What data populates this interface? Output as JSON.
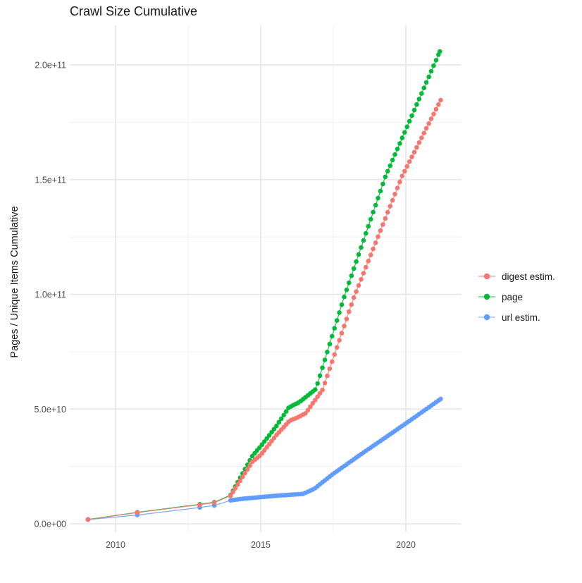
{
  "title": "Crawl Size Cumulative",
  "y_axis_title": "Pages / Unique Items Cumulative",
  "legend": {
    "items": [
      {
        "label": "digest estim.",
        "color": "#F8766D"
      },
      {
        "label": "page",
        "color": "#00BA38"
      },
      {
        "label": "url estim.",
        "color": "#619CFF"
      }
    ]
  },
  "chart_data": {
    "type": "scatter",
    "title": "Crawl Size Cumulative",
    "xlabel": "",
    "ylabel": "Pages / Unique Items Cumulative",
    "x_ticks": [
      {
        "value": 2010,
        "label": "2010"
      },
      {
        "value": 2015,
        "label": "2015"
      },
      {
        "value": 2020,
        "label": "2020"
      }
    ],
    "x_minor_ticks": [
      2012.5,
      2017.5
    ],
    "y_ticks": [
      {
        "value_billions": 0,
        "label": "0.0e+00"
      },
      {
        "value_billions": 50,
        "label": "5.0e+10"
      },
      {
        "value_billions": 100,
        "label": "1.0e+11"
      },
      {
        "value_billions": 150,
        "label": "1.5e+11"
      },
      {
        "value_billions": 200,
        "label": "2.0e+11"
      }
    ],
    "y_minor_ticks_billions": [
      25,
      75,
      125,
      175
    ],
    "xlim": [
      2008.5,
      2021.9
    ],
    "ylim_billions": [
      -4,
      217
    ],
    "grid": true,
    "legend_position": "right",
    "values_unit": "items (1 unit = 1e9)",
    "point_interval_years": 0.0833,
    "draw_order": [
      2,
      1,
      0
    ],
    "series": [
      {
        "name": "digest estim.",
        "color": "#F8766D",
        "early_points_year_billions": [
          [
            2009.05,
            1.85
          ],
          [
            2010.75,
            4.9
          ],
          [
            2012.9,
            8.3
          ],
          [
            2013.4,
            9.2
          ]
        ],
        "trend_anchors_year_billions": [
          [
            2013.96,
            12.2
          ],
          [
            2014.71,
            27.0
          ],
          [
            2015.0,
            30.0
          ],
          [
            2015.53,
            38.5
          ],
          [
            2016.0,
            45.0
          ],
          [
            2016.25,
            46.2
          ],
          [
            2016.55,
            48.2
          ],
          [
            2017.13,
            58.4
          ],
          [
            2018.2,
            98.3
          ],
          [
            2019.87,
            151.5
          ],
          [
            2021.2,
            184.6
          ]
        ]
      },
      {
        "name": "page",
        "color": "#00BA38",
        "early_points_year_billions": [
          [
            2009.05,
            1.9
          ],
          [
            2010.75,
            5.0
          ],
          [
            2012.9,
            8.5
          ],
          [
            2013.4,
            9.4
          ]
        ],
        "trend_anchors_year_billions": [
          [
            2013.96,
            12.5
          ],
          [
            2014.71,
            29.5
          ],
          [
            2015.02,
            34.1
          ],
          [
            2015.53,
            42.4
          ],
          [
            2015.97,
            50.7
          ],
          [
            2016.33,
            53.0
          ],
          [
            2016.9,
            58.7
          ],
          [
            2017.86,
            98.3
          ],
          [
            2019.3,
            151.5
          ],
          [
            2021.17,
            205.8
          ]
        ]
      },
      {
        "name": "url estim.",
        "color": "#619CFF",
        "early_points_year_billions": [
          [
            2009.05,
            1.8
          ],
          [
            2010.75,
            3.8
          ],
          [
            2012.9,
            7.1
          ],
          [
            2013.4,
            8.0
          ]
        ],
        "trend_anchors_year_billions": [
          [
            2013.96,
            10.2
          ],
          [
            2014.3,
            10.8
          ],
          [
            2015.5,
            12.2
          ],
          [
            2016.45,
            13.0
          ],
          [
            2016.84,
            15.2
          ],
          [
            2017.5,
            21.8
          ],
          [
            2018.5,
            30.7
          ],
          [
            2019.4,
            38.5
          ],
          [
            2020.2,
            45.5
          ],
          [
            2021.2,
            54.4
          ]
        ]
      }
    ]
  }
}
